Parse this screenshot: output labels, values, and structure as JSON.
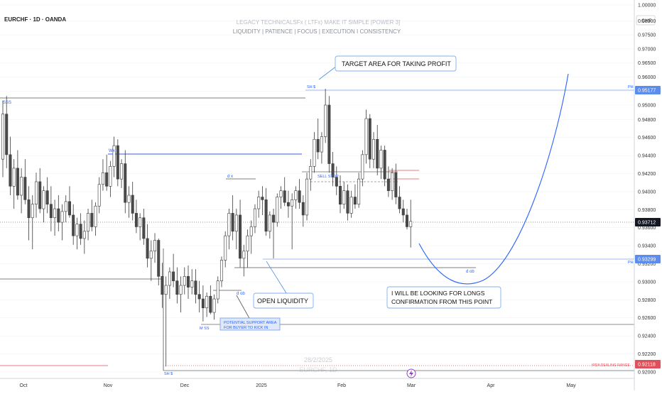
{
  "symbol": {
    "label": "EURCHF · 1D · OANDA"
  },
  "watermark": {
    "line1": "LEGACY TECHNICALSFx ( LTFx) MAKE IT SIMPLE [POWER 3]",
    "line2": "LIQUIDITY | PATIENCE | FOCUS | EXECUTION I CONSISTENCY",
    "bottom": "28/2/2025",
    "ticker_faint": "EURCHF, 1D"
  },
  "colors": {
    "up": "#ffffff",
    "down": "#4a4a4a",
    "wick": "#3a3a3a",
    "blue": "#2962ff",
    "light_blue": "#5b8def",
    "red": "#e0505a",
    "axis_text": "#333333",
    "grid": "#f0f3f7"
  },
  "axis": {
    "currency": "CHF",
    "price_ticks": [
      "1.00000",
      "0.98000",
      "0.97500",
      "0.97000",
      "0.96500",
      "0.96000",
      "0.95500",
      "0.95000",
      "0.94800",
      "0.94600",
      "0.94400",
      "0.94200",
      "0.94000",
      "0.93800",
      "0.93600",
      "0.93400",
      "0.93200",
      "0.93000",
      "0.92800",
      "0.92600",
      "0.92400",
      "0.92200",
      "0.92000"
    ],
    "tick_values": [
      0.99925,
      0.997,
      0.995,
      0.993,
      0.991,
      0.989,
      0.987,
      0.985,
      0.9484,
      0.9464,
      0.9444,
      0.9424,
      0.9404,
      0.9384,
      0.9364,
      0.9344,
      0.9324,
      0.9304,
      0.9284,
      0.9264,
      0.9244,
      0.9224,
      0.9204
    ],
    "month_labels": [
      "Oct",
      "Nov",
      "Dec",
      "2025",
      "Feb",
      "Mar",
      "Apr",
      "May"
    ],
    "badges": [
      {
        "value": "0.95177",
        "style": "blue"
      },
      {
        "value": "0.93712",
        "style": "black"
      },
      {
        "value": "0.93299",
        "style": "blue"
      },
      {
        "value": "0.92118",
        "style": "red"
      }
    ]
  },
  "annotations": {
    "target": "TARGET AREA FOR  TAKING PROFIT",
    "open_liquidity": "OPEN LIQUIDITY",
    "longs_line1": "I WILL BE LOOKING FOR LONGS",
    "longs_line2": "CONFIRMATION FROM THIS POINT",
    "support_line1": "POTENTIAL SUPPORT AREA",
    "support_line2": "FOR BUYER TO KICK IN",
    "sss": "SSS",
    "wx": "Wx",
    "dx": "d x",
    "sell_stop": "SELL STOP",
    "sh_top": "SH $",
    "ph_top": "PH",
    "ph_low": "PH",
    "d_ob_low": "d ob",
    "d_ob_right": "d ob",
    "m_ss": "M SS",
    "sh_bottom": "SH $",
    "ipda": "IPDA DEALING RANGE"
  },
  "chart_data": {
    "type": "candlestick",
    "title": "EURCHF · 1D · OANDA",
    "ylabel": "CHF",
    "ylim": [
      0.9195,
      1.0
    ],
    "candles": [
      [
        0.944,
        0.9505,
        0.942,
        0.949
      ],
      [
        0.949,
        0.951,
        0.943,
        0.9445
      ],
      [
        0.9445,
        0.9465,
        0.94,
        0.941
      ],
      [
        0.941,
        0.944,
        0.9385,
        0.943
      ],
      [
        0.943,
        0.945,
        0.9395,
        0.94
      ],
      [
        0.94,
        0.943,
        0.938,
        0.942
      ],
      [
        0.942,
        0.944,
        0.939,
        0.9395
      ],
      [
        0.9395,
        0.941,
        0.935,
        0.9375
      ],
      [
        0.9375,
        0.94,
        0.934,
        0.939
      ],
      [
        0.939,
        0.9425,
        0.9375,
        0.9415
      ],
      [
        0.9415,
        0.943,
        0.938,
        0.9385
      ],
      [
        0.9385,
        0.941,
        0.937,
        0.9405
      ],
      [
        0.9405,
        0.942,
        0.938,
        0.939
      ],
      [
        0.939,
        0.941,
        0.936,
        0.9375
      ],
      [
        0.9375,
        0.9395,
        0.9355,
        0.9385
      ],
      [
        0.9385,
        0.94,
        0.936,
        0.937
      ],
      [
        0.937,
        0.939,
        0.935,
        0.9382
      ],
      [
        0.9382,
        0.94,
        0.937,
        0.9393
      ],
      [
        0.9393,
        0.941,
        0.9375,
        0.9378
      ],
      [
        0.9378,
        0.939,
        0.9345,
        0.9355
      ],
      [
        0.9355,
        0.9375,
        0.934,
        0.9368
      ],
      [
        0.9368,
        0.938,
        0.9345,
        0.9352
      ],
      [
        0.9352,
        0.9372,
        0.9335,
        0.936
      ],
      [
        0.936,
        0.9385,
        0.935,
        0.938
      ],
      [
        0.938,
        0.9395,
        0.936,
        0.9365
      ],
      [
        0.9365,
        0.9392,
        0.9355,
        0.9388
      ],
      [
        0.9388,
        0.942,
        0.938,
        0.9412
      ],
      [
        0.9412,
        0.944,
        0.9405,
        0.9425
      ],
      [
        0.9425,
        0.9445,
        0.9405,
        0.941
      ],
      [
        0.941,
        0.9438,
        0.9398,
        0.9432
      ],
      [
        0.9432,
        0.9465,
        0.942,
        0.9455
      ],
      [
        0.9455,
        0.9462,
        0.941,
        0.9418
      ],
      [
        0.9418,
        0.944,
        0.9408,
        0.9435
      ],
      [
        0.9435,
        0.945,
        0.938,
        0.9392
      ],
      [
        0.9392,
        0.941,
        0.9375,
        0.94
      ],
      [
        0.94,
        0.9415,
        0.9372,
        0.938
      ],
      [
        0.938,
        0.9395,
        0.9358,
        0.9365
      ],
      [
        0.9365,
        0.938,
        0.935,
        0.9375
      ],
      [
        0.9375,
        0.9385,
        0.9345,
        0.9352
      ],
      [
        0.9352,
        0.9368,
        0.932,
        0.933
      ],
      [
        0.933,
        0.935,
        0.9305,
        0.9338
      ],
      [
        0.9338,
        0.9358,
        0.9325,
        0.935
      ],
      [
        0.935,
        0.9352,
        0.93,
        0.931
      ],
      [
        0.931,
        0.9325,
        0.9275,
        0.929
      ],
      [
        0.929,
        0.931,
        0.921,
        0.93
      ],
      [
        0.93,
        0.932,
        0.9285,
        0.9315
      ],
      [
        0.9315,
        0.9335,
        0.9298,
        0.9305
      ],
      [
        0.9305,
        0.932,
        0.928,
        0.929
      ],
      [
        0.929,
        0.931,
        0.927,
        0.93
      ],
      [
        0.93,
        0.932,
        0.929,
        0.931
      ],
      [
        0.931,
        0.9322,
        0.9285,
        0.9298
      ],
      [
        0.9298,
        0.9318,
        0.929,
        0.9305
      ],
      [
        0.9305,
        0.9318,
        0.928,
        0.929
      ],
      [
        0.929,
        0.9305,
        0.927,
        0.9285
      ],
      [
        0.9285,
        0.93,
        0.926,
        0.9275
      ],
      [
        0.9275,
        0.9292,
        0.9265,
        0.9288
      ],
      [
        0.9288,
        0.93,
        0.9268,
        0.927
      ],
      [
        0.927,
        0.929,
        0.9262,
        0.9285
      ],
      [
        0.9285,
        0.931,
        0.928,
        0.9305
      ],
      [
        0.9305,
        0.9332,
        0.9298,
        0.9328
      ],
      [
        0.9328,
        0.936,
        0.932,
        0.9355
      ],
      [
        0.9355,
        0.9385,
        0.934,
        0.938
      ],
      [
        0.938,
        0.94,
        0.935,
        0.936
      ],
      [
        0.936,
        0.9385,
        0.934,
        0.9378
      ],
      [
        0.9378,
        0.9395,
        0.932,
        0.933
      ],
      [
        0.933,
        0.9345,
        0.931,
        0.9338
      ],
      [
        0.9338,
        0.9362,
        0.932,
        0.9355
      ],
      [
        0.9355,
        0.9372,
        0.9335,
        0.9365
      ],
      [
        0.9365,
        0.939,
        0.9358,
        0.9385
      ],
      [
        0.9385,
        0.9405,
        0.9375,
        0.9398
      ],
      [
        0.9398,
        0.941,
        0.9378,
        0.9395
      ],
      [
        0.9395,
        0.9408,
        0.9355,
        0.936
      ],
      [
        0.936,
        0.9382,
        0.9352,
        0.9378
      ],
      [
        0.9378,
        0.9385,
        0.933,
        0.937
      ],
      [
        0.937,
        0.9402,
        0.9365,
        0.9398
      ],
      [
        0.9398,
        0.941,
        0.9385,
        0.9405
      ],
      [
        0.9405,
        0.942,
        0.9388,
        0.9392
      ],
      [
        0.9392,
        0.9405,
        0.9375,
        0.9388
      ],
      [
        0.9388,
        0.9402,
        0.934,
        0.9395
      ],
      [
        0.9395,
        0.941,
        0.9385,
        0.9405
      ],
      [
        0.9405,
        0.9418,
        0.9385,
        0.9392
      ],
      [
        0.9392,
        0.94,
        0.9365,
        0.9378
      ],
      [
        0.9378,
        0.9425,
        0.9372,
        0.9418
      ],
      [
        0.9418,
        0.944,
        0.9405,
        0.9432
      ],
      [
        0.9432,
        0.947,
        0.9425,
        0.9462
      ],
      [
        0.9462,
        0.9485,
        0.944,
        0.9448
      ],
      [
        0.9448,
        0.947,
        0.9435,
        0.9465
      ],
      [
        0.9465,
        0.9518,
        0.9458,
        0.95
      ],
      [
        0.95,
        0.951,
        0.9425,
        0.9435
      ],
      [
        0.9435,
        0.9448,
        0.941,
        0.942
      ],
      [
        0.942,
        0.9432,
        0.94,
        0.941
      ],
      [
        0.941,
        0.9422,
        0.938,
        0.939
      ],
      [
        0.939,
        0.9415,
        0.9385,
        0.9405
      ],
      [
        0.9405,
        0.9412,
        0.9372,
        0.938
      ],
      [
        0.938,
        0.9405,
        0.9375,
        0.9398
      ],
      [
        0.9398,
        0.9412,
        0.9385,
        0.939
      ],
      [
        0.939,
        0.9425,
        0.9386,
        0.9418
      ],
      [
        0.9418,
        0.945,
        0.941,
        0.9445
      ],
      [
        0.9445,
        0.9495,
        0.9435,
        0.9485
      ],
      [
        0.9485,
        0.949,
        0.943,
        0.944
      ],
      [
        0.944,
        0.947,
        0.943,
        0.9462
      ],
      [
        0.9462,
        0.9478,
        0.9422,
        0.943
      ],
      [
        0.943,
        0.9455,
        0.9418,
        0.945
      ],
      [
        0.945,
        0.9455,
        0.941,
        0.9418
      ],
      [
        0.9418,
        0.9432,
        0.9398,
        0.9405
      ],
      [
        0.9405,
        0.943,
        0.9395,
        0.9425
      ],
      [
        0.9425,
        0.9435,
        0.939,
        0.9398
      ],
      [
        0.9398,
        0.941,
        0.938,
        0.9385
      ],
      [
        0.9385,
        0.9395,
        0.937,
        0.9378
      ],
      [
        0.9378,
        0.9385,
        0.9362,
        0.9365
      ],
      [
        0.9365,
        0.9395,
        0.9342,
        0.9371
      ]
    ]
  }
}
